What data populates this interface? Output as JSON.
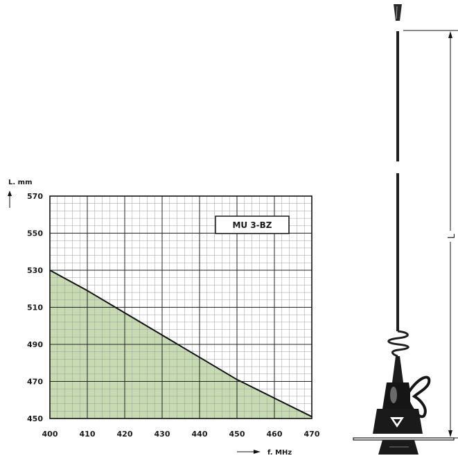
{
  "chart_data": {
    "type": "area",
    "title": "",
    "xlabel": "f. MHz",
    "ylabel": "L. mm",
    "xlim": [
      400,
      470
    ],
    "ylim": [
      450,
      570
    ],
    "x_ticks": [
      "400",
      "410",
      "420",
      "430",
      "440",
      "450",
      "460",
      "470"
    ],
    "y_ticks": [
      "570",
      "550",
      "530",
      "510",
      "490",
      "470",
      "450"
    ],
    "series": [
      {
        "name": "MU 3-BZ",
        "x": [
          400,
          410,
          420,
          430,
          440,
          450,
          460,
          470
        ],
        "y": [
          530,
          519,
          507,
          495,
          483,
          471,
          461,
          451
        ]
      }
    ],
    "fill_color": "#c7dbb2",
    "line_color": "#111111",
    "grid": true,
    "legend": "top-right"
  },
  "drawing": {
    "dimension_label": "L"
  }
}
